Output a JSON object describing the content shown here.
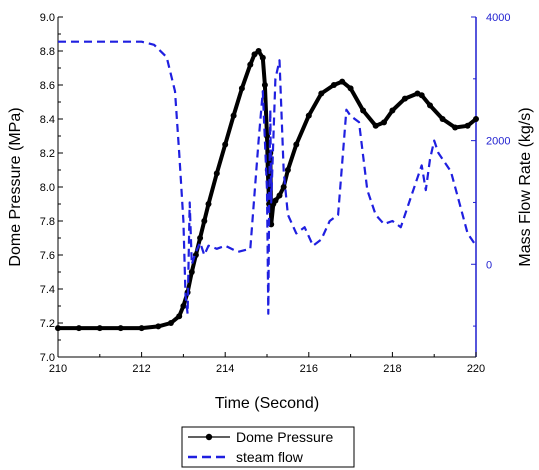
{
  "chart_data": {
    "type": "line",
    "xlabel": "Time (Second)",
    "ylabel_left": "Dome Pressure (MPa)",
    "ylabel_right": "Mass Flow Rate (kg/s)",
    "xlim": [
      210,
      220
    ],
    "ylim_left": [
      7.0,
      9.0
    ],
    "ylim_right": [
      -1500,
      4000
    ],
    "x_ticks": [
      "210",
      "212",
      "214",
      "216",
      "218",
      "220"
    ],
    "y_left_ticks": [
      "7.0",
      "7.2",
      "7.4",
      "7.6",
      "7.8",
      "8.0",
      "8.2",
      "8.4",
      "8.6",
      "8.8",
      "9.0"
    ],
    "y_right_ticks": [
      "0",
      "2000",
      "4000"
    ],
    "legend_position": "bottom",
    "colors": {
      "pressure": "#000000",
      "steam": "#1f1fe0",
      "right_axis": "#1f1fd0"
    },
    "series": [
      {
        "name": "Dome Pressure",
        "axis": "left",
        "style": "solid-with-dots",
        "x": [
          210.0,
          210.5,
          211.0,
          211.5,
          212.0,
          212.4,
          212.7,
          212.9,
          213.0,
          213.1,
          213.2,
          213.3,
          213.4,
          213.5,
          213.6,
          213.8,
          214.0,
          214.2,
          214.4,
          214.6,
          214.7,
          214.8,
          214.9,
          214.95,
          215.0,
          215.02,
          215.05,
          215.08,
          215.1,
          215.15,
          215.2,
          215.3,
          215.4,
          215.5,
          215.7,
          216.0,
          216.3,
          216.6,
          216.8,
          217.0,
          217.3,
          217.6,
          217.8,
          218.0,
          218.3,
          218.6,
          218.7,
          218.9,
          219.2,
          219.5,
          219.8,
          220.0
        ],
        "y": [
          7.17,
          7.17,
          7.17,
          7.17,
          7.17,
          7.18,
          7.2,
          7.24,
          7.3,
          7.38,
          7.5,
          7.6,
          7.7,
          7.8,
          7.9,
          8.08,
          8.25,
          8.42,
          8.58,
          8.72,
          8.78,
          8.8,
          8.76,
          8.6,
          8.3,
          8.1,
          7.9,
          8.2,
          7.78,
          7.9,
          7.92,
          7.95,
          8.0,
          8.1,
          8.25,
          8.42,
          8.55,
          8.6,
          8.62,
          8.58,
          8.45,
          8.36,
          8.38,
          8.45,
          8.52,
          8.55,
          8.54,
          8.48,
          8.4,
          8.35,
          8.36,
          8.4
        ]
      },
      {
        "name": "steam flow",
        "axis": "right",
        "style": "dashed",
        "x": [
          210.0,
          211.0,
          212.0,
          212.3,
          212.6,
          212.8,
          212.9,
          213.0,
          213.05,
          213.1,
          213.15,
          213.2,
          213.3,
          213.4,
          213.5,
          213.6,
          213.8,
          214.0,
          214.3,
          214.6,
          214.8,
          214.9,
          215.0,
          215.03,
          215.05,
          215.08,
          215.1,
          215.2,
          215.3,
          215.4,
          215.5,
          215.7,
          215.9,
          216.1,
          216.3,
          216.5,
          216.7,
          216.9,
          217.0,
          217.2,
          217.4,
          217.6,
          217.8,
          218.0,
          218.2,
          218.4,
          218.6,
          218.7,
          218.8,
          218.9,
          219.0,
          219.1,
          219.2,
          219.4,
          219.6,
          219.8,
          220.0
        ],
        "y": [
          3600,
          3600,
          3600,
          3550,
          3350,
          2800,
          1800,
          700,
          -500,
          -800,
          1000,
          0,
          200,
          350,
          150,
          300,
          250,
          300,
          200,
          250,
          2000,
          2800,
          1200,
          -800,
          900,
          2500,
          1000,
          3000,
          3300,
          1500,
          800,
          500,
          600,
          300,
          400,
          700,
          800,
          2500,
          2400,
          2300,
          1200,
          800,
          650,
          700,
          600,
          1000,
          1400,
          1600,
          1200,
          1700,
          2000,
          1800,
          1700,
          1500,
          1000,
          500,
          300
        ]
      }
    ]
  }
}
